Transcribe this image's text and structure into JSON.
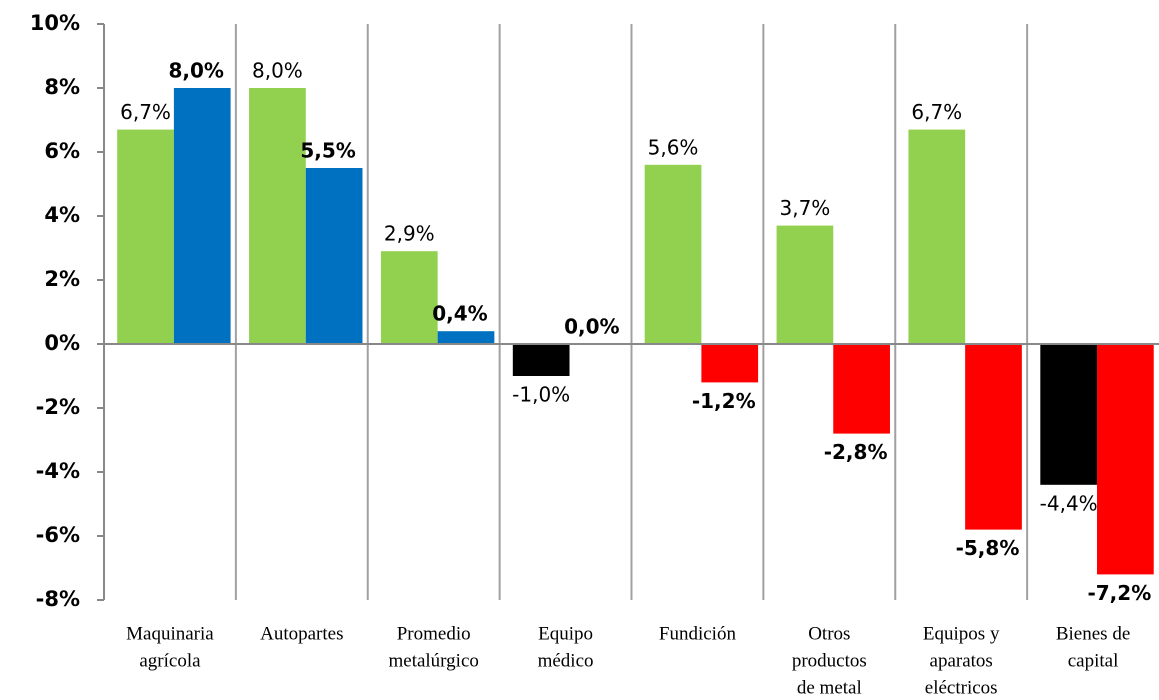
{
  "chart_data": {
    "type": "bar",
    "categories": [
      [
        "Maquinaria",
        "agrícola"
      ],
      [
        "Autopartes"
      ],
      [
        "Promedio",
        "metalúrgico"
      ],
      [
        "Equipo",
        "médico"
      ],
      [
        "Fundición"
      ],
      [
        "Otros",
        "productos",
        "de metal"
      ],
      [
        "Equipos y",
        "aparatos",
        "eléctricos"
      ],
      [
        "Bienes de",
        "capital"
      ]
    ],
    "series": [
      {
        "values": [
          6.7,
          8.0,
          2.9,
          -1.0,
          5.6,
          3.7,
          6.7,
          -4.4
        ],
        "value_labels": [
          "6,7%",
          "8,0%",
          "2,9%",
          "-1,0%",
          "5,6%",
          "3,7%",
          "6,7%",
          "-4,4%"
        ],
        "colors": [
          "#92d050",
          "#92d050",
          "#92d050",
          "#000000",
          "#92d050",
          "#92d050",
          "#92d050",
          "#000000"
        ]
      },
      {
        "values": [
          8.0,
          5.5,
          0.4,
          0.0,
          -1.2,
          -2.8,
          -5.8,
          -7.2
        ],
        "value_labels": [
          "8,0%",
          "5,5%",
          "0,4%",
          "0,0%",
          "-1,2%",
          "-2,8%",
          "-5,8%",
          "-7,2%"
        ],
        "colors": [
          "#0070c0",
          "#0070c0",
          "#0070c0",
          "#0070c0",
          "#ff0000",
          "#ff0000",
          "#ff0000",
          "#ff0000"
        ],
        "bold_labels": true
      }
    ],
    "ylim": [
      -8,
      10
    ],
    "yticks": [
      {
        "value": -8,
        "label": "-8%"
      },
      {
        "value": -6,
        "label": "-6%"
      },
      {
        "value": -4,
        "label": "-4%"
      },
      {
        "value": -2,
        "label": "-2%"
      },
      {
        "value": 0,
        "label": "0%"
      },
      {
        "value": 2,
        "label": "2%"
      },
      {
        "value": 4,
        "label": "4%"
      },
      {
        "value": 6,
        "label": "6%"
      },
      {
        "value": 8,
        "label": "8%"
      },
      {
        "value": 10,
        "label": "10%"
      }
    ],
    "grid": true
  }
}
